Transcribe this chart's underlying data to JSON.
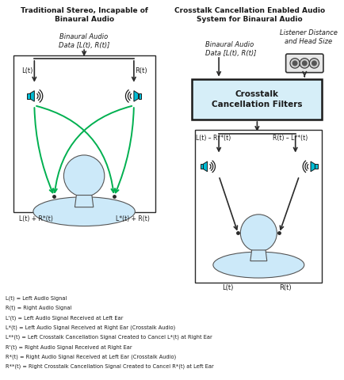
{
  "title_left": "Traditional Stereo, Incapable of\nBinaural Audio",
  "title_right": "Crosstalk Cancellation Enabled Audio\nSystem for Binaural Audio",
  "bg_color": "#ffffff",
  "text_color": "#1a1a1a",
  "speaker_color": "#00bcd4",
  "person_color": "#cce9f9",
  "arrow_color": "#2a2a2a",
  "green_color": "#00b050",
  "box_fill": "#d6eef8",
  "box_border": "#1a1a1a",
  "legend_lines": [
    "L(t) = Left Audio Signal",
    "R(t) = Right Audio Signal",
    "L'(t) = Left Audio Signal Received at Left Ear",
    "L*(t) = Left Audio Signal Received at Right Ear (Crosstalk Audio)",
    "L**(t) = Left Crosstalk Cancellation Signal Created to Cancel L*(t) at Right Ear",
    "R'(t) = Right Audio Signal Received at Right Ear",
    "R*(t) = Right Audio Signal Received at Left Ear (Crosstalk Audio)",
    "R**(t) = Right Crosstalk Cancellation Signal Created to Cancel R*(t) at Left Ear"
  ]
}
